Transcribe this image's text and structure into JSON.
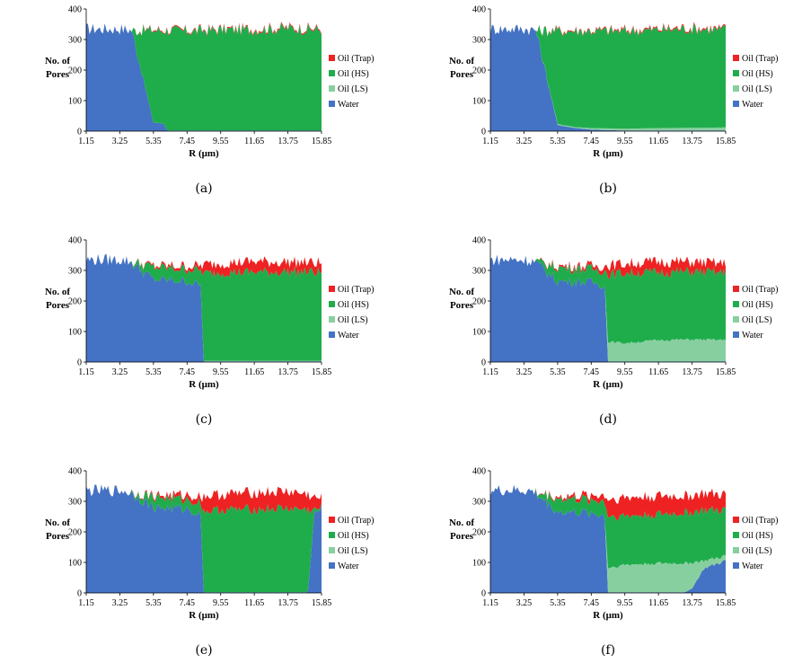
{
  "legend": [
    "Oil (Trap)",
    "Oil (HS)",
    "Oil (LS)",
    "Water"
  ],
  "colors": {
    "trap": "#ee2222",
    "hs": "#1fad4c",
    "ls": "#88cfa0",
    "water": "#4472c4"
  },
  "ylabel_line1": "No. of",
  "ylabel_line2": "Pores",
  "xlabel": "R (μm)",
  "x_ticks": [
    "1.15",
    "3.25",
    "5.35",
    "7.45",
    "9.55",
    "11.65",
    "13.75",
    "15.85"
  ],
  "y_ticks": [
    "0",
    "100",
    "200",
    "300",
    "400"
  ],
  "chart_data": [
    {
      "type": "area",
      "caption": "(a)",
      "stacked": true,
      "xlim": [
        1.15,
        15.85
      ],
      "ylim": [
        0,
        400
      ],
      "series_order": [
        "water",
        "ls",
        "hs",
        "trap"
      ],
      "x": [
        1.15,
        3.25,
        3.85,
        4.0,
        5.35,
        6.0,
        6.2,
        7.45,
        9.55,
        11.65,
        13.75,
        15.85
      ],
      "series": {
        "water": [
          335,
          335,
          332,
          330,
          28,
          25,
          2,
          2,
          2,
          2,
          2,
          2
        ],
        "ls": [
          0,
          0,
          0,
          0,
          0,
          0,
          0,
          0,
          0,
          0,
          0,
          0
        ],
        "hs": [
          0,
          0,
          0,
          0,
          302,
          305,
          328,
          325,
          330,
          330,
          335,
          330
        ],
        "trap": [
          0,
          0,
          0,
          0,
          3,
          3,
          3,
          3,
          3,
          4,
          4,
          4
        ]
      }
    },
    {
      "type": "area",
      "caption": "(b)",
      "stacked": true,
      "xlim": [
        1.15,
        15.85
      ],
      "ylim": [
        0,
        400
      ],
      "series_order": [
        "water",
        "ls",
        "hs",
        "trap"
      ],
      "x": [
        1.15,
        3.25,
        3.85,
        4.0,
        5.35,
        6.5,
        7.45,
        9.55,
        11.65,
        13.75,
        15.85
      ],
      "series": {
        "water": [
          335,
          335,
          332,
          330,
          20,
          10,
          5,
          2,
          2,
          2,
          2
        ],
        "ls": [
          0,
          0,
          0,
          0,
          3,
          3,
          5,
          6,
          8,
          9,
          10
        ],
        "hs": [
          0,
          0,
          0,
          0,
          305,
          315,
          318,
          320,
          322,
          325,
          320
        ],
        "trap": [
          0,
          0,
          0,
          0,
          3,
          3,
          3,
          4,
          4,
          4,
          4
        ]
      }
    },
    {
      "type": "area",
      "caption": "(c)",
      "stacked": true,
      "xlim": [
        1.15,
        15.85
      ],
      "ylim": [
        0,
        400
      ],
      "series_order": [
        "water",
        "ls",
        "hs",
        "trap"
      ],
      "x": [
        1.15,
        3.25,
        3.85,
        5.35,
        7.45,
        8.3,
        8.5,
        9.55,
        11.65,
        13.75,
        15.85
      ],
      "series": {
        "water": [
          335,
          335,
          330,
          270,
          265,
          250,
          2,
          2,
          2,
          2,
          2
        ],
        "ls": [
          0,
          0,
          0,
          0,
          0,
          0,
          2,
          2,
          2,
          2,
          2
        ],
        "hs": [
          0,
          0,
          0,
          40,
          40,
          50,
          285,
          290,
          290,
          292,
          290
        ],
        "trap": [
          0,
          0,
          0,
          5,
          10,
          15,
          30,
          30,
          35,
          32,
          30
        ]
      }
    },
    {
      "type": "area",
      "caption": "(d)",
      "stacked": true,
      "xlim": [
        1.15,
        15.85
      ],
      "ylim": [
        0,
        400
      ],
      "series_order": [
        "water",
        "ls",
        "hs",
        "trap"
      ],
      "x": [
        1.15,
        3.25,
        3.85,
        5.35,
        7.45,
        8.3,
        8.5,
        9.55,
        11.65,
        13.75,
        15.85
      ],
      "series": {
        "water": [
          335,
          335,
          330,
          265,
          262,
          250,
          2,
          2,
          2,
          2,
          2
        ],
        "ls": [
          0,
          0,
          0,
          0,
          0,
          0,
          65,
          60,
          70,
          72,
          70
        ],
        "hs": [
          0,
          0,
          0,
          45,
          43,
          50,
          220,
          230,
          222,
          222,
          220
        ],
        "trap": [
          0,
          0,
          0,
          5,
          10,
          15,
          30,
          30,
          35,
          32,
          30
        ]
      }
    },
    {
      "type": "area",
      "caption": "(e)",
      "stacked": true,
      "xlim": [
        1.15,
        15.85
      ],
      "ylim": [
        0,
        400
      ],
      "series_order": [
        "water",
        "ls",
        "hs",
        "trap"
      ],
      "x": [
        1.15,
        3.25,
        3.85,
        5.35,
        7.45,
        8.3,
        8.5,
        9.55,
        11.65,
        13.75,
        15.0,
        15.4,
        15.85
      ],
      "series": {
        "water": [
          335,
          335,
          330,
          280,
          275,
          255,
          2,
          2,
          2,
          2,
          2,
          260,
          275
        ],
        "ls": [
          0,
          0,
          0,
          0,
          0,
          0,
          0,
          0,
          0,
          0,
          0,
          0,
          0
        ],
        "hs": [
          0,
          0,
          0,
          35,
          30,
          40,
          265,
          270,
          272,
          275,
          270,
          10,
          5
        ],
        "trap": [
          0,
          0,
          0,
          5,
          15,
          20,
          50,
          50,
          55,
          55,
          50,
          40,
          30
        ]
      }
    },
    {
      "type": "area",
      "caption": "(f)",
      "stacked": true,
      "xlim": [
        1.15,
        15.85
      ],
      "ylim": [
        0,
        400
      ],
      "series_order": [
        "water",
        "ls",
        "hs",
        "trap"
      ],
      "x": [
        1.15,
        3.25,
        3.85,
        5.35,
        7.45,
        8.3,
        8.5,
        9.55,
        11.65,
        13.3,
        13.75,
        14.5,
        15.85
      ],
      "series": {
        "water": [
          335,
          335,
          330,
          265,
          262,
          250,
          2,
          2,
          2,
          2,
          15,
          80,
          105
        ],
        "ls": [
          0,
          0,
          0,
          0,
          0,
          0,
          80,
          90,
          95,
          95,
          85,
          25,
          15
        ],
        "hs": [
          0,
          0,
          0,
          45,
          43,
          50,
          170,
          160,
          160,
          165,
          165,
          165,
          150
        ],
        "trap": [
          0,
          0,
          0,
          5,
          15,
          20,
          55,
          60,
          60,
          55,
          55,
          55,
          50
        ]
      }
    }
  ]
}
